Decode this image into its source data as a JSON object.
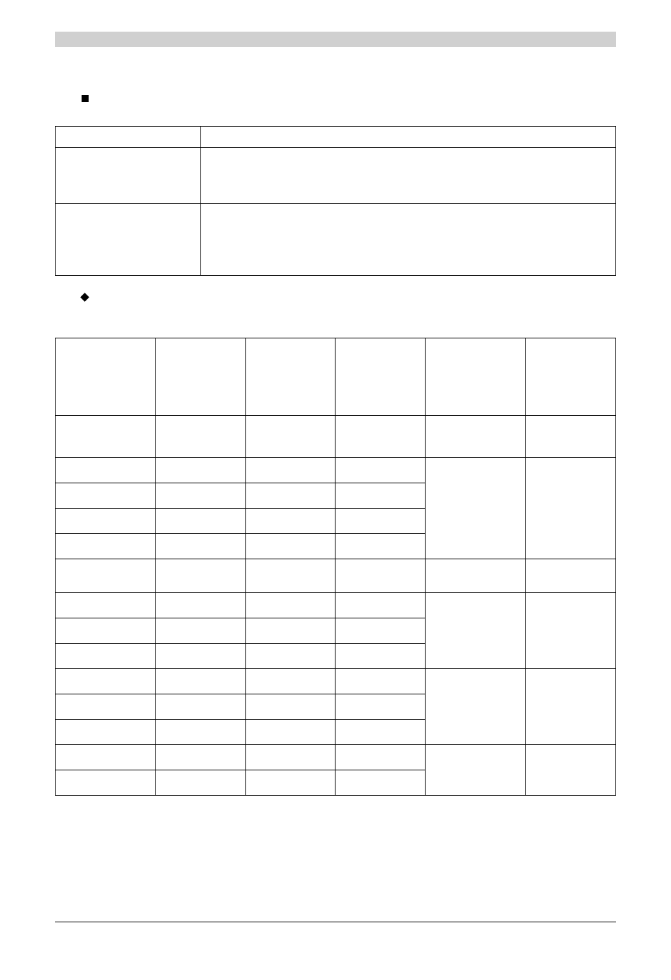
{
  "section_label": "",
  "subsection_label": "",
  "table1": {
    "columns": [
      "",
      ""
    ],
    "rows": [
      [
        "",
        ""
      ],
      [
        "",
        ""
      ],
      [
        "",
        ""
      ]
    ]
  },
  "table2": {
    "columns": [
      "",
      "",
      "",
      "",
      "",
      ""
    ],
    "header_row": [
      "",
      "",
      "",
      "",
      "",
      ""
    ],
    "intro_row": [
      "",
      "",
      "",
      "",
      "",
      ""
    ],
    "grid_rows": [
      [
        "",
        "",
        "",
        ""
      ],
      [
        "",
        "",
        "",
        ""
      ],
      [
        "",
        "",
        "",
        ""
      ],
      [
        "",
        "",
        "",
        ""
      ]
    ],
    "grid_span": {
      "c5": "",
      "c6": ""
    },
    "mid_row": [
      "",
      "",
      "",
      "",
      "",
      ""
    ],
    "grid2_rows": [
      [
        "",
        "",
        "",
        ""
      ],
      [
        "",
        "",
        "",
        ""
      ],
      [
        "",
        "",
        "",
        ""
      ]
    ],
    "grid2_span": {
      "c5": "",
      "c6": ""
    },
    "grid3_rows": [
      [
        "",
        "",
        "",
        ""
      ],
      [
        "",
        "",
        "",
        ""
      ],
      [
        "",
        "",
        "",
        ""
      ]
    ],
    "grid3_span": {
      "c5": "",
      "c6": ""
    },
    "last_rows": [
      [
        "",
        "",
        "",
        "",
        "",
        ""
      ],
      [
        "",
        "",
        "",
        "",
        "",
        ""
      ]
    ]
  },
  "colors": {
    "top_bar": "#d0d0d0",
    "border": "#000000",
    "background": "#ffffff"
  }
}
